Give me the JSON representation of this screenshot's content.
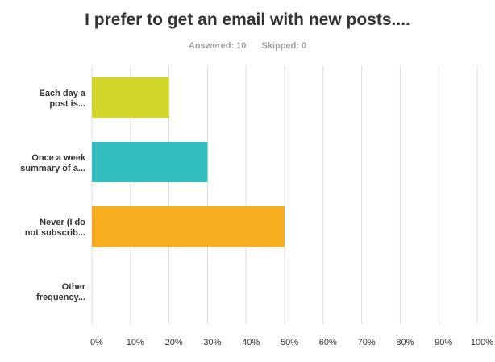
{
  "title": "I prefer to get an email with new posts....",
  "stats": {
    "answered": "Answered: 10",
    "skipped": "Skipped: 0"
  },
  "chart_data": {
    "type": "bar",
    "orientation": "horizontal",
    "categories": [
      [
        "Each day a",
        "post is..."
      ],
      [
        "Once a week",
        "summary of a..."
      ],
      [
        "Never (I do",
        "not subscrib..."
      ],
      [
        "Other",
        "frequency..."
      ]
    ],
    "values": [
      20,
      30,
      50,
      0
    ],
    "colors": [
      "#d3d72a",
      "#33bfbf",
      "#f6ae1f",
      "#cccccc"
    ],
    "xlim": [
      0,
      100
    ],
    "ticks": [
      "0%",
      "10%",
      "20%",
      "30%",
      "40%",
      "50%",
      "60%",
      "70%",
      "80%",
      "90%",
      "100%"
    ],
    "grid": true,
    "grid_color": "#dddddd"
  }
}
